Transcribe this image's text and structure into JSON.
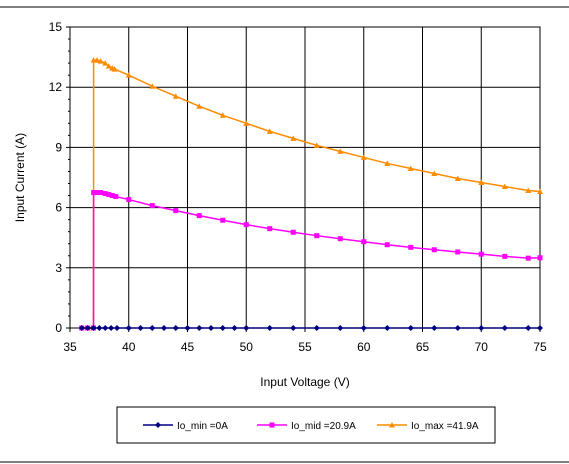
{
  "chart_data": {
    "type": "line",
    "xlabel": "Input Voltage (V)",
    "ylabel": "Input Current (A)",
    "xlim": [
      35,
      75
    ],
    "ylim": [
      0,
      15
    ],
    "xticks": [
      35,
      40,
      45,
      50,
      55,
      60,
      65,
      70,
      75
    ],
    "yticks": [
      0,
      3,
      6,
      9,
      12,
      15
    ],
    "grid": true,
    "legend_position": "bottom",
    "series": [
      {
        "name": "Io_min =0A",
        "color": "#000080",
        "marker": "diamond",
        "x": [
          36,
          36.5,
          37,
          37.5,
          38,
          38.5,
          39,
          40,
          41,
          42,
          43,
          44,
          45,
          46,
          47,
          48,
          49,
          50,
          52,
          54,
          56,
          58,
          60,
          62,
          64,
          66,
          68,
          70,
          72,
          74,
          75
        ],
        "y": [
          0,
          0,
          0,
          0,
          0,
          0,
          0,
          0,
          0,
          0,
          0,
          0,
          0,
          0,
          0,
          0,
          0,
          0,
          0,
          0,
          0,
          0,
          0,
          0,
          0,
          0,
          0,
          0,
          0,
          0,
          0
        ]
      },
      {
        "name": "Io_mid =20.9A",
        "color": "#ff00ff",
        "marker": "square",
        "x": [
          36,
          36.5,
          37,
          37.01,
          37.3,
          37.6,
          38,
          38.3,
          38.6,
          38.9,
          40,
          42,
          44,
          46,
          48,
          50,
          52,
          54,
          56,
          58,
          60,
          62,
          64,
          66,
          68,
          70,
          72,
          74,
          75
        ],
        "y": [
          0,
          0,
          0,
          6.75,
          6.75,
          6.75,
          6.7,
          6.65,
          6.6,
          6.55,
          6.4,
          6.1,
          5.85,
          5.6,
          5.37,
          5.15,
          4.95,
          4.77,
          4.6,
          4.45,
          4.3,
          4.15,
          4.02,
          3.9,
          3.79,
          3.68,
          3.57,
          3.48,
          3.5
        ]
      },
      {
        "name": "Io_max =41.9A",
        "color": "#ff8c00",
        "marker": "triangle",
        "x": [
          36.5,
          37,
          37.01,
          37.3,
          37.6,
          38,
          38.3,
          38.6,
          38.8,
          40,
          42,
          44,
          46,
          48,
          50,
          52,
          54,
          56,
          58,
          60,
          62,
          64,
          66,
          68,
          70,
          72,
          74,
          75
        ],
        "y": [
          0,
          0,
          13.35,
          13.35,
          13.3,
          13.2,
          13.05,
          12.95,
          12.9,
          12.6,
          12.05,
          11.55,
          11.05,
          10.6,
          10.2,
          9.8,
          9.45,
          9.1,
          8.8,
          8.5,
          8.2,
          7.95,
          7.7,
          7.45,
          7.25,
          7.05,
          6.85,
          6.8
        ]
      }
    ]
  }
}
